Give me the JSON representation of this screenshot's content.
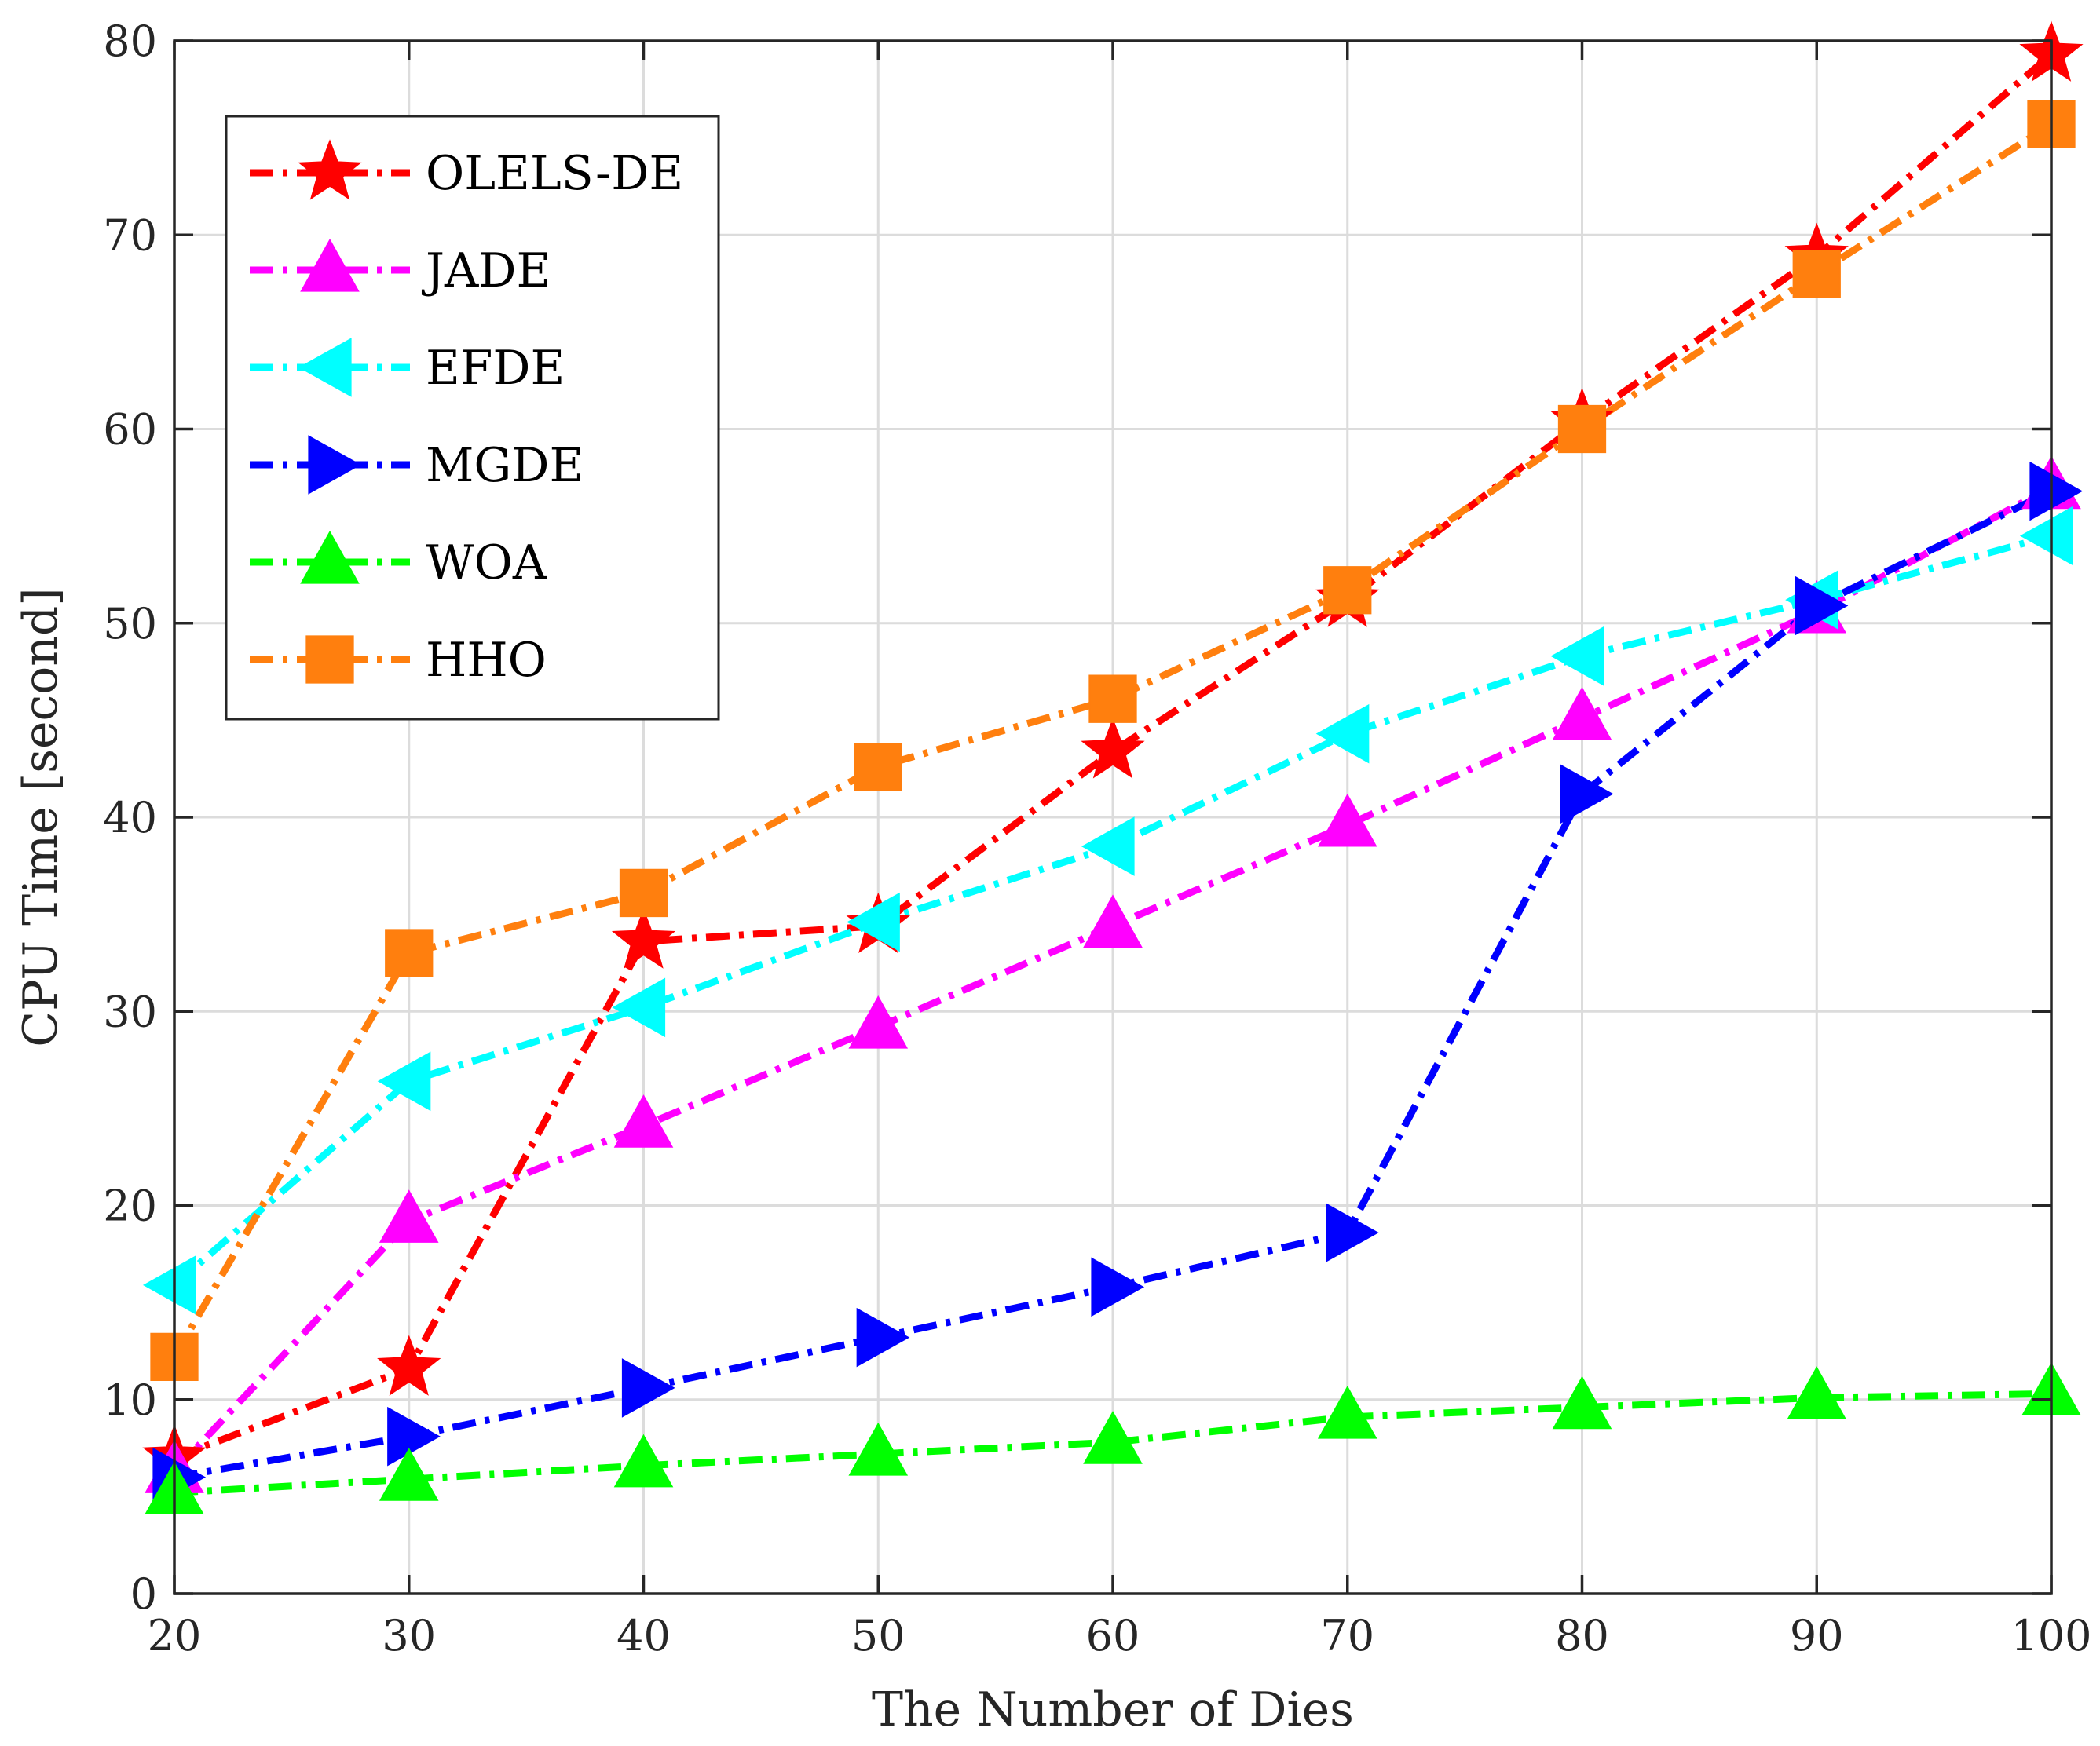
{
  "chart_data": {
    "type": "line",
    "title": "",
    "xlabel": "The Number of Dies",
    "ylabel": "CPU Time [second]",
    "x": [
      20,
      30,
      40,
      50,
      60,
      70,
      80,
      90,
      100
    ],
    "xlim": [
      20,
      100
    ],
    "ylim": [
      0,
      80
    ],
    "xticks": [
      "20",
      "30",
      "40",
      "50",
      "60",
      "70",
      "80",
      "90",
      "100"
    ],
    "yticks": [
      "0",
      "10",
      "20",
      "30",
      "40",
      "50",
      "60",
      "70",
      "80"
    ],
    "grid": true,
    "legend_position": "top-left",
    "series": [
      {
        "name": "OLELS-DE",
        "color": "#ff0000",
        "marker": "star",
        "values": [
          7.0,
          11.6,
          33.6,
          34.4,
          43.4,
          51.2,
          60.4,
          68.9,
          79.3
        ]
      },
      {
        "name": "JADE",
        "color": "#ff00ff",
        "marker": "triangle-up",
        "values": [
          6.3,
          19.2,
          24.1,
          29.2,
          34.4,
          39.6,
          45.1,
          50.6,
          57.0
        ]
      },
      {
        "name": "EFDE",
        "color": "#00ffff",
        "marker": "triangle-left",
        "values": [
          15.9,
          26.4,
          30.2,
          34.6,
          38.5,
          44.3,
          48.3,
          51.2,
          54.5
        ]
      },
      {
        "name": "MGDE",
        "color": "#0000ff",
        "marker": "triangle-right",
        "values": [
          6.0,
          8.1,
          10.6,
          13.2,
          15.8,
          18.6,
          41.2,
          50.9,
          56.8
        ]
      },
      {
        "name": "WOA",
        "color": "#00ff00",
        "marker": "triangle-up",
        "values": [
          5.2,
          5.9,
          6.6,
          7.2,
          7.8,
          9.1,
          9.6,
          10.1,
          10.3
        ]
      },
      {
        "name": "HHO",
        "color": "#ff7f0e",
        "marker": "square",
        "values": [
          12.2,
          33.0,
          36.1,
          42.6,
          46.1,
          51.7,
          60.0,
          68.0,
          75.7
        ]
      }
    ]
  }
}
